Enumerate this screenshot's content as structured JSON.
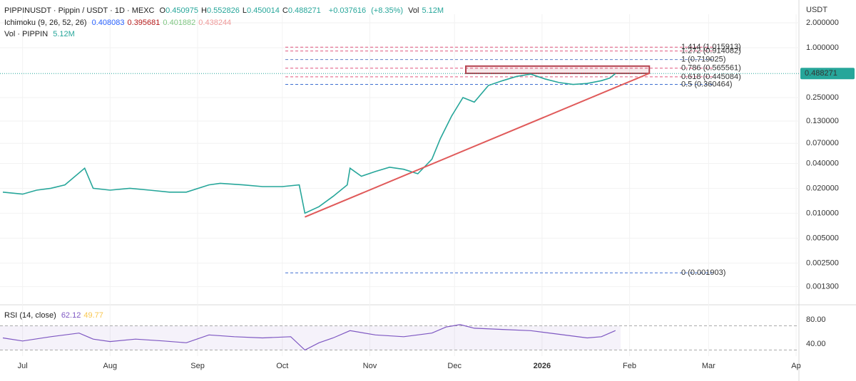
{
  "chart_data": {
    "type": "line",
    "title": "PIPPINUSDT · Pippin / USDT · 1D · MEXC",
    "ohlc_labels": [
      "O",
      "H",
      "L",
      "C"
    ],
    "ohlc": [
      0.450975,
      0.552826,
      0.450014,
      0.488271
    ],
    "change": {
      "value": 0.037616,
      "label": "+0.037616"
    },
    "change_pct": {
      "value": 8.35,
      "label": "(+8.35%)"
    },
    "volume_label": "Vol",
    "volume": {
      "value": 5120000,
      "label": "5.12M"
    },
    "ichimoku": {
      "name": "Ichimoku (9, 26, 52, 26)",
      "values": [
        0.408083,
        0.395681,
        0.401882,
        0.438244
      ],
      "colors": [
        "#2962ff",
        "#b71c1c",
        "#81c784",
        "#ef9a9a"
      ]
    },
    "vol_indicator": {
      "name": "Vol · PIPPIN",
      "value": {
        "value": 5120000,
        "label": "5.12M"
      }
    },
    "rsi": {
      "name": "RSI (14, close)",
      "values": [
        62.12,
        49.77
      ],
      "colors": [
        "#7e57c2",
        "#f9c74f"
      ]
    },
    "currency": "USDT",
    "last_price": 0.488271,
    "log_scale": true,
    "grid": true,
    "series": [
      {
        "color": "#26a69a",
        "x": [
          -7,
          0,
          5,
          10,
          15,
          22,
          25,
          31,
          38,
          45,
          52,
          58,
          66,
          70,
          78,
          85,
          92,
          98,
          100,
          105,
          110,
          115,
          116,
          120,
          125,
          130,
          135,
          140,
          145,
          148,
          152,
          156,
          160,
          165,
          170,
          175,
          180,
          185,
          190,
          195,
          200,
          205,
          208,
          210
        ],
        "values": [
          0.018,
          0.017,
          0.019,
          0.02,
          0.022,
          0.035,
          0.02,
          0.019,
          0.02,
          0.019,
          0.018,
          0.018,
          0.022,
          0.023,
          0.022,
          0.021,
          0.021,
          0.022,
          0.01,
          0.012,
          0.016,
          0.022,
          0.035,
          0.028,
          0.032,
          0.036,
          0.034,
          0.03,
          0.045,
          0.08,
          0.15,
          0.25,
          0.22,
          0.35,
          0.4,
          0.45,
          0.48,
          0.42,
          0.38,
          0.36,
          0.37,
          0.4,
          0.43,
          0.488271
        ]
      }
    ],
    "fib_levels": [
      {
        "value": 1.015913,
        "label": "1.414 (1.015913)",
        "color": "#e0577f"
      },
      {
        "value": 0.914082,
        "label": "1.272 (0.914082)",
        "color": "#e0577f"
      },
      {
        "value": 0.719025,
        "label": "1 (0.719025)",
        "color": "#5b7fc7"
      },
      {
        "value": 0.565561,
        "label": "0.786 (0.565561)",
        "color": "#e0577f"
      },
      {
        "value": 0.445084,
        "label": "0.618 (0.445084)",
        "color": "#e0577f"
      },
      {
        "value": 0.360464,
        "label": "0.5 (0.360464)",
        "color": "#3d6fd1"
      },
      {
        "value": 0.001903,
        "label": "0 (0.001903)",
        "color": "#3d6fd1"
      }
    ],
    "trendline": {
      "x": [
        100,
        222
      ],
      "values": [
        0.009,
        0.49
      ],
      "color": "#e05a5a"
    },
    "resistance_box": {
      "x": [
        157,
        222
      ],
      "values": [
        0.49,
        0.6
      ],
      "color": "#b5434f"
    },
    "xlim": [
      -8,
      275
    ],
    "xticks": [
      {
        "value": 0,
        "label": "Jul"
      },
      {
        "value": 31,
        "label": "Aug"
      },
      {
        "value": 62,
        "label": "Sep"
      },
      {
        "value": 92,
        "label": "Oct"
      },
      {
        "value": 123,
        "label": "Nov"
      },
      {
        "value": 153,
        "label": "Dec"
      },
      {
        "value": 184,
        "label": "2026"
      },
      {
        "value": 215,
        "label": "Feb"
      },
      {
        "value": 243,
        "label": "Mar"
      },
      {
        "value": 274,
        "label": "Ap"
      }
    ],
    "ylim": [
      0.00083,
      2.54
    ],
    "yticks": [
      {
        "value": 2,
        "label": "2.000000"
      },
      {
        "value": 1,
        "label": "1.000000"
      },
      {
        "value": 0.25,
        "label": "0.250000"
      },
      {
        "value": 0.13,
        "label": "0.130000"
      },
      {
        "value": 0.07,
        "label": "0.070000"
      },
      {
        "value": 0.04,
        "label": "0.040000"
      },
      {
        "value": 0.02,
        "label": "0.020000"
      },
      {
        "value": 0.01,
        "label": "0.010000"
      },
      {
        "value": 0.005,
        "label": "0.005000"
      },
      {
        "value": 0.0025,
        "label": "0.002500"
      },
      {
        "value": 0.0013,
        "label": "0.001300"
      }
    ],
    "rsi_panel": {
      "color": "#7e57c2",
      "x": [
        -7,
        0,
        10,
        20,
        25,
        31,
        40,
        50,
        58,
        66,
        75,
        85,
        95,
        100,
        105,
        110,
        116,
        125,
        135,
        145,
        150,
        155,
        160,
        170,
        180,
        190,
        200,
        205,
        210
      ],
      "values": [
        50,
        45,
        52,
        58,
        48,
        44,
        48,
        45,
        42,
        55,
        52,
        50,
        52,
        30,
        42,
        50,
        62,
        55,
        52,
        58,
        68,
        72,
        66,
        64,
        62,
        56,
        50,
        52,
        62.12
      ],
      "ylim": [
        20,
        100
      ],
      "yticks": [
        {
          "value": 80,
          "label": "80.00"
        },
        {
          "value": 40,
          "label": "40.00"
        }
      ],
      "bands": [
        70,
        30
      ]
    }
  }
}
